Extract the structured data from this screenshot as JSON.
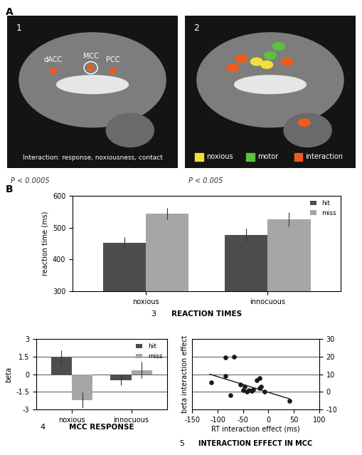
{
  "panel_labels": [
    "A",
    "B"
  ],
  "images": [
    {
      "panel": "1",
      "labels": [
        "dACC",
        "MCC",
        "PCC"
      ],
      "caption": "Interaction: response, noxiousness, contact",
      "threshold": "P < 0.0005"
    },
    {
      "panel": "2",
      "legend": [
        {
          "name": "noxious",
          "color": "#f2e03a"
        },
        {
          "name": "motor",
          "color": "#5cc23c"
        },
        {
          "name": "interaction",
          "color": "#f05a1e"
        }
      ],
      "threshold": "P < 0.005"
    }
  ],
  "chart_data": [
    {
      "type": "bar",
      "panel": "3",
      "title": "REACTION TIMES",
      "y_label": "reaction time (ms)",
      "categories": [
        "noxious",
        "innocuous"
      ],
      "series": [
        {
          "name": "hit",
          "color": "#4d4d4d",
          "values": [
            452,
            477
          ],
          "errors": [
            18,
            20
          ]
        },
        {
          "name": "miss",
          "color": "#a6a6a6",
          "values": [
            543,
            526
          ],
          "errors": [
            18,
            22
          ]
        }
      ],
      "ylim": [
        300,
        600
      ],
      "yticks": [
        300,
        400,
        500,
        600
      ],
      "grid": false,
      "legend": "upper right"
    },
    {
      "type": "bar",
      "panel": "4",
      "title": "MCC RESPONSE",
      "y_label": "beta",
      "categories": [
        "noxious",
        "innocuous"
      ],
      "series": [
        {
          "name": "hit",
          "color": "#4d4d4d",
          "values": [
            1.4,
            -0.5
          ],
          "errors": [
            0.65,
            0.45
          ]
        },
        {
          "name": "miss",
          "color": "#a6a6a6",
          "values": [
            -2.2,
            0.35
          ],
          "errors": [
            0.65,
            0.7
          ]
        }
      ],
      "ylim": [
        -3,
        3
      ],
      "yticks": [
        -3,
        -1.5,
        0,
        1.5,
        3
      ],
      "grid": true,
      "legend": "upper right"
    },
    {
      "type": "scatter",
      "panel": "5",
      "title": "INTERACTION EFFECT IN MCC",
      "x_label": "RT interaction effect (ms)",
      "y_label": "beta interaction effect",
      "series": [
        {
          "type": "scatter",
          "color": "#1a1a1a",
          "marker": "o",
          "x": [
            -113,
            -84,
            -68,
            -85,
            -75,
            -55,
            -50,
            -47,
            -43,
            -38,
            -33,
            -30,
            -23,
            -18,
            -18,
            -15,
            -8,
            42
          ],
          "values": [
            5.5,
            19.5,
            20,
            9,
            -2,
            4,
            1,
            3,
            0,
            1,
            0.5,
            1.5,
            6.5,
            8,
            2,
            3,
            0,
            -5
          ]
        },
        {
          "type": "line",
          "color": "#1a1a1a",
          "line_style": "solid",
          "x": [
            -115,
            42
          ],
          "values": [
            10,
            -4
          ]
        }
      ],
      "xlim": [
        -150,
        100
      ],
      "xticks": [
        -150,
        -100,
        -50,
        0,
        50,
        100
      ],
      "ylim": [
        -10,
        30
      ],
      "yticks": [
        -10,
        0,
        10,
        20,
        30
      ],
      "grid": true
    }
  ]
}
